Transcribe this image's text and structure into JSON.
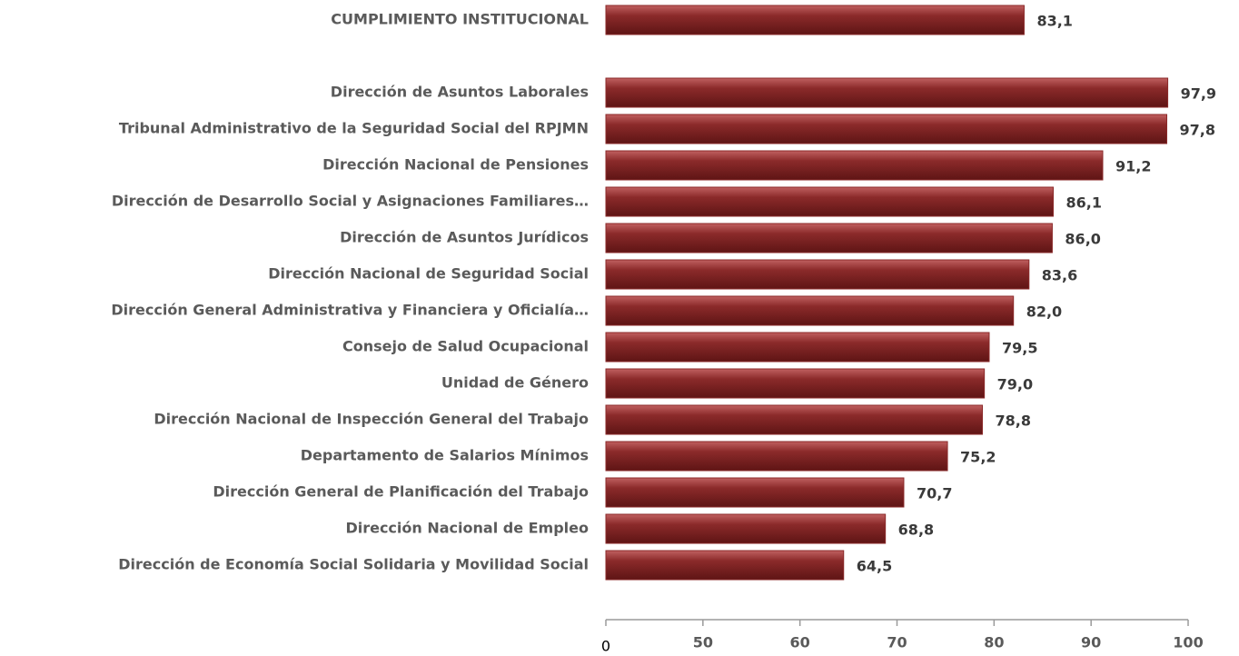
{
  "chart_data": {
    "type": "barh",
    "categories": [
      "CUMPLIMIENTO INSTITUCIONAL",
      "Dirección de Asuntos Laborales",
      "Tribunal Administrativo de la Seguridad Social del RPJMN",
      "Dirección Nacional de Pensiones",
      "Dirección de Desarrollo Social y Asignaciones Familiares…",
      "Dirección de Asuntos Jurídicos",
      "Dirección Nacional de Seguridad Social",
      "Dirección General Administrativa y Financiera y Oficialía…",
      "Consejo de Salud Ocupacional",
      "Unidad de Género",
      "Dirección Nacional de Inspección General del Trabajo",
      "Departamento de Salarios Mínimos",
      "Dirección General de Planificación del Trabajo",
      "Dirección Nacional de Empleo",
      "Dirección de Economía Social Solidaria y Movilidad Social"
    ],
    "values": [
      83.1,
      97.9,
      97.8,
      91.2,
      86.1,
      86.0,
      83.6,
      82.0,
      79.5,
      79.0,
      78.8,
      75.2,
      70.7,
      68.8,
      64.5
    ],
    "value_labels": [
      "83,1",
      "97,9",
      "97,8",
      "91,2",
      "86,1",
      "86,0",
      "83,6",
      "82,0",
      "79,5",
      "79,0",
      "78,8",
      "75,2",
      "70,7",
      "68,8",
      "64,5"
    ],
    "color": "#8b2a2a",
    "xlim": [
      40,
      100
    ],
    "xticks": [
      {
        "value": 40,
        "label": "0"
      },
      50,
      60,
      70,
      80,
      90,
      100
    ]
  }
}
